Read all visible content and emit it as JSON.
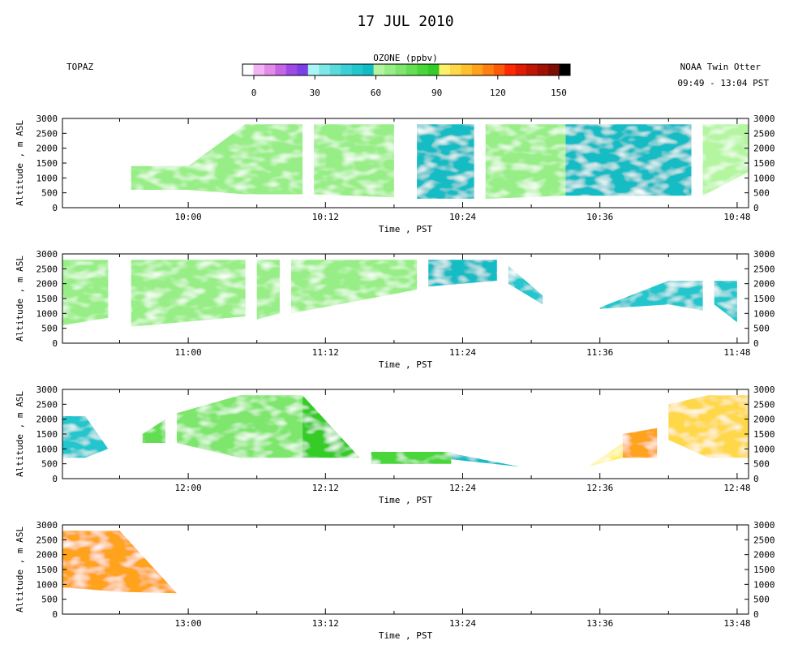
{
  "figure": {
    "title": "17 JUL 2010",
    "instrument": "TOPAZ",
    "platform": "NOAA Twin Otter",
    "time_range": "09:49 - 13:04 PST"
  },
  "colorbar": {
    "label": "OZONE (ppbv)",
    "min": 0,
    "max": 150,
    "tick_labels": [
      "0",
      "30",
      "60",
      "90",
      "120",
      "150"
    ],
    "tick_values": [
      0,
      30,
      60,
      90,
      120,
      150
    ],
    "colors": [
      "#ffffff",
      "#f3b4f3",
      "#e08ce8",
      "#c466e6",
      "#9d4ae6",
      "#7a3fe6",
      "#aaf6f6",
      "#7ee8e8",
      "#5adada",
      "#3dcfd6",
      "#22c6cc",
      "#12bcc4",
      "#b4f5a0",
      "#98ee86",
      "#7ee66c",
      "#64de52",
      "#4ad63a",
      "#34cc28",
      "#fff06a",
      "#ffd84a",
      "#ffc02e",
      "#ffa21c",
      "#ff7f10",
      "#ff5a08",
      "#ff2a04",
      "#e01c04",
      "#c01404",
      "#a01004",
      "#7c0c04",
      "#000000"
    ]
  },
  "chart_data": [
    {
      "type": "heatmap",
      "panel": 1,
      "xlabel": "Time , PST",
      "ylabel": "Altitude , m ASL",
      "xlim": [
        "09:49",
        "10:49"
      ],
      "x_ticks": [
        "10:00",
        "10:12",
        "10:24",
        "10:36",
        "10:48"
      ],
      "ylim": [
        0,
        3000
      ],
      "y_ticks": [
        0,
        500,
        1000,
        1500,
        2000,
        2500,
        3000
      ],
      "colorbar": "OZONE (ppbv)",
      "segments": [
        {
          "start": "09:55",
          "end": "10:10",
          "top": [
            1400,
            1400,
            2800,
            2800
          ],
          "bottom": [
            600,
            600,
            450,
            450
          ],
          "dominant_ozone_ppbv": 65
        },
        {
          "start": "10:11",
          "end": "10:18",
          "top": [
            2800,
            2800
          ],
          "bottom": [
            450,
            350
          ],
          "dominant_ozone_ppbv": 65
        },
        {
          "start": "10:20",
          "end": "10:25",
          "top": [
            2800,
            2800
          ],
          "bottom": [
            300,
            300
          ],
          "dominant_ozone_ppbv": 55
        },
        {
          "start": "10:26",
          "end": "10:33",
          "top": [
            2800,
            2800
          ],
          "bottom": [
            300,
            400
          ],
          "dominant_ozone_ppbv": 65
        },
        {
          "start": "10:33",
          "end": "10:44",
          "top": [
            2800,
            2800
          ],
          "bottom": [
            400,
            400
          ],
          "dominant_ozone_ppbv": 55
        },
        {
          "start": "10:45",
          "end": "10:49",
          "top": [
            2800,
            2800
          ],
          "bottom": [
            400,
            1200
          ],
          "dominant_ozone_ppbv": 60
        }
      ]
    },
    {
      "type": "heatmap",
      "panel": 2,
      "xlabel": "Time , PST",
      "ylabel": "Altitude , m ASL",
      "xlim": [
        "10:49",
        "11:49"
      ],
      "x_ticks": [
        "11:00",
        "11:12",
        "11:24",
        "11:36",
        "11:48"
      ],
      "ylim": [
        0,
        3000
      ],
      "y_ticks": [
        0,
        500,
        1000,
        1500,
        2000,
        2500,
        3000
      ],
      "colorbar": "OZONE (ppbv)",
      "segments": [
        {
          "start": "10:49",
          "end": "10:53",
          "top": [
            2800,
            2800
          ],
          "bottom": [
            600,
            850
          ],
          "dominant_ozone_ppbv": 65
        },
        {
          "start": "10:55",
          "end": "11:05",
          "top": [
            2800,
            2800
          ],
          "bottom": [
            550,
            900
          ],
          "dominant_ozone_ppbv": 65
        },
        {
          "start": "11:06",
          "end": "11:08",
          "top": [
            2800,
            2800
          ],
          "bottom": [
            800,
            1000
          ],
          "dominant_ozone_ppbv": 65
        },
        {
          "start": "11:09",
          "end": "11:20",
          "top": [
            2800,
            2800
          ],
          "bottom": [
            1000,
            1800
          ],
          "dominant_ozone_ppbv": 65
        },
        {
          "start": "11:21",
          "end": "11:27",
          "top": [
            2800,
            2800
          ],
          "bottom": [
            1900,
            2100
          ],
          "dominant_ozone_ppbv": 55
        },
        {
          "start": "11:28",
          "end": "11:31",
          "top": [
            2600,
            1600
          ],
          "bottom": [
            2000,
            1300
          ],
          "dominant_ozone_ppbv": 50
        },
        {
          "start": "11:36",
          "end": "11:42",
          "top": [
            1200,
            2100
          ],
          "bottom": [
            1150,
            1300
          ],
          "dominant_ozone_ppbv": 50
        },
        {
          "start": "11:42",
          "end": "11:45",
          "top": [
            2100,
            2100
          ],
          "bottom": [
            1300,
            1100
          ],
          "dominant_ozone_ppbv": 50
        },
        {
          "start": "11:46",
          "end": "11:48",
          "top": [
            2100,
            2100
          ],
          "bottom": [
            1300,
            700
          ],
          "dominant_ozone_ppbv": 50
        }
      ]
    },
    {
      "type": "heatmap",
      "panel": 3,
      "xlabel": "Time , PST",
      "ylabel": "Altitude , m ASL",
      "xlim": [
        "11:49",
        "12:49"
      ],
      "x_ticks": [
        "12:00",
        "12:12",
        "12:24",
        "12:36",
        "12:48"
      ],
      "ylim": [
        0,
        3000
      ],
      "y_ticks": [
        0,
        500,
        1000,
        1500,
        2000,
        2500,
        3000
      ],
      "colorbar": "OZONE (ppbv)",
      "segments": [
        {
          "start": "11:49",
          "end": "11:53",
          "top": [
            2100,
            2100,
            1000
          ],
          "bottom": [
            700,
            700,
            1000
          ],
          "dominant_ozone_ppbv": 50
        },
        {
          "start": "11:56",
          "end": "11:58",
          "top": [
            1500,
            2000
          ],
          "bottom": [
            1200,
            1200
          ],
          "dominant_ozone_ppbv": 75
        },
        {
          "start": "11:59",
          "end": "12:10",
          "top": [
            2200,
            2800,
            2800
          ],
          "bottom": [
            1200,
            700,
            700
          ],
          "dominant_ozone_ppbv": 70
        },
        {
          "start": "12:10",
          "end": "12:15",
          "top": [
            2800,
            700
          ],
          "bottom": [
            700,
            700
          ],
          "dominant_ozone_ppbv": 85
        },
        {
          "start": "12:16",
          "end": "12:23",
          "top": [
            900,
            900
          ],
          "bottom": [
            500,
            500
          ],
          "dominant_ozone_ppbv": 80
        },
        {
          "start": "12:23",
          "end": "12:29",
          "top": [
            850,
            400
          ],
          "bottom": [
            650,
            400
          ],
          "dominant_ozone_ppbv": 55
        },
        {
          "start": "12:35",
          "end": "12:38",
          "top": [
            400,
            1200
          ],
          "bottom": [
            400,
            700
          ],
          "dominant_ozone_ppbv": 90
        },
        {
          "start": "12:38",
          "end": "12:41",
          "top": [
            1500,
            1700
          ],
          "bottom": [
            700,
            700
          ],
          "dominant_ozone_ppbv": 105
        },
        {
          "start": "12:42",
          "end": "12:49",
          "top": [
            2500,
            2800,
            2800
          ],
          "bottom": [
            1300,
            700,
            700
          ],
          "dominant_ozone_ppbv": 95
        }
      ]
    },
    {
      "type": "heatmap",
      "panel": 4,
      "xlabel": "Time , PST",
      "ylabel": "Altitude , m ASL",
      "xlim": [
        "12:49",
        "13:49"
      ],
      "x_ticks": [
        "13:00",
        "13:12",
        "13:24",
        "13:36",
        "13:48"
      ],
      "ylim": [
        0,
        3000
      ],
      "y_ticks": [
        0,
        500,
        1000,
        1500,
        2000,
        2500,
        3000
      ],
      "colorbar": "OZONE (ppbv)",
      "segments": [
        {
          "start": "12:49",
          "end": "12:59",
          "top": [
            2800,
            2800,
            700
          ],
          "bottom": [
            900,
            750,
            700
          ],
          "dominant_ozone_ppbv": 105
        }
      ]
    }
  ]
}
